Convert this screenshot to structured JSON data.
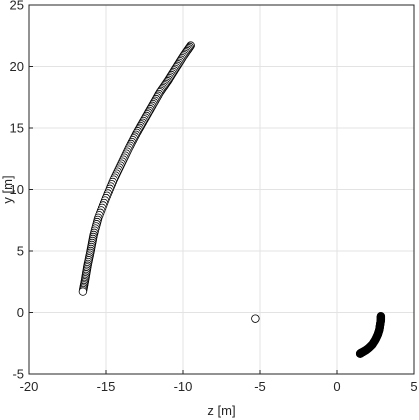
{
  "chart_data": {
    "type": "scatter",
    "title": "",
    "xlabel": "z [m]",
    "ylabel": "y [m]",
    "xlim": [
      -20,
      5
    ],
    "ylim": [
      -5,
      25
    ],
    "xticks": [
      -20,
      -15,
      -10,
      -5,
      0,
      5
    ],
    "yticks": [
      -5,
      0,
      5,
      10,
      15,
      20,
      25
    ],
    "xtick_labels": [
      "-20",
      "-15",
      "-10",
      "-5",
      "0",
      "5"
    ],
    "ytick_labels": [
      "-5",
      "0",
      "5",
      "10",
      "15",
      "20",
      "25"
    ],
    "grid": true,
    "series": [
      {
        "marker": "open-circle",
        "x": [
          -9.5,
          -10.0,
          -10.5,
          -11.0,
          -11.5,
          -12.0,
          -12.5,
          -13.0,
          -13.5,
          -14.0,
          -14.5,
          -15.0,
          -15.5,
          -15.8,
          -16.0,
          -16.2,
          -16.35,
          -16.5
        ],
        "y": [
          21.7,
          20.8,
          19.8,
          18.8,
          17.9,
          16.8,
          15.7,
          14.6,
          13.4,
          12.1,
          10.8,
          9.3,
          7.7,
          6.3,
          5.0,
          3.8,
          2.7,
          1.7
        ]
      },
      {
        "marker": "open-circle",
        "x": [
          -5.3
        ],
        "y": [
          -0.5
        ]
      },
      {
        "marker": "filled-circle",
        "x": [
          2.85,
          2.85,
          2.8,
          2.75,
          2.65,
          2.5,
          2.3,
          2.1,
          1.9,
          1.7,
          1.55,
          1.5
        ],
        "y": [
          -0.3,
          -0.6,
          -1.0,
          -1.4,
          -1.8,
          -2.2,
          -2.6,
          -2.85,
          -3.05,
          -3.2,
          -3.3,
          -3.35
        ]
      }
    ]
  }
}
